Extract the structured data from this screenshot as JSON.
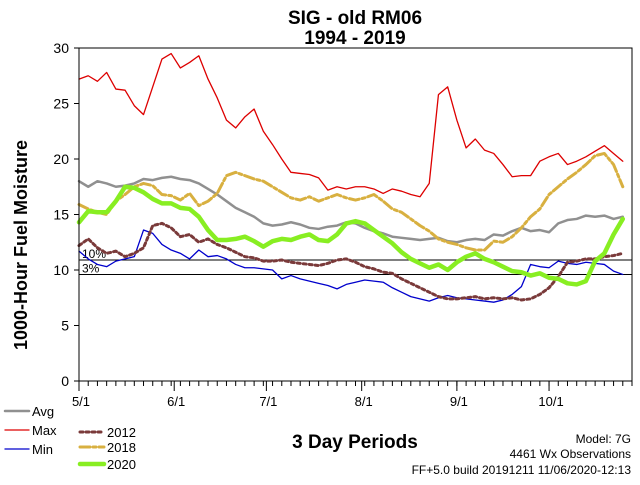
{
  "chart_data": {
    "type": "line",
    "title": "SIG - old RM06",
    "subtitle": "1994 - 2019",
    "xlabel": "3 Day Periods",
    "ylabel": "1000-Hour Fuel Moisture",
    "ylim": [
      0,
      30
    ],
    "yticks": [
      0,
      5,
      10,
      15,
      20,
      25,
      30
    ],
    "xlim": [
      0,
      60
    ],
    "xticks": [
      {
        "label": "5/1",
        "period": 0
      },
      {
        "label": "6/1",
        "period": 10.33
      },
      {
        "label": "7/1",
        "period": 20.33
      },
      {
        "label": "8/1",
        "period": 30.67
      },
      {
        "label": "9/1",
        "period": 41
      },
      {
        "label": "10/1",
        "period": 51
      }
    ],
    "grid": false,
    "reference_lines": [
      {
        "label": "10%",
        "value": 10.9
      },
      {
        "label": "3%",
        "value": 9.6
      }
    ],
    "series": [
      {
        "name": "Avg",
        "color": "#909090",
        "width": 2.5,
        "dash": "",
        "values": [
          18.0,
          17.5,
          18.0,
          17.8,
          17.5,
          17.6,
          17.8,
          18.2,
          18.1,
          18.3,
          18.4,
          18.2,
          18.1,
          17.8,
          17.3,
          16.8,
          16.2,
          15.6,
          15.2,
          14.8,
          14.2,
          14.0,
          14.1,
          14.3,
          14.1,
          13.8,
          13.7,
          13.9,
          14.0,
          14.3,
          14.2,
          13.8,
          13.5,
          13.3,
          13.0,
          12.9,
          12.8,
          12.7,
          12.8,
          12.9,
          12.6,
          12.5,
          12.7,
          12.8,
          12.7,
          13.2,
          13.1,
          13.5,
          13.8,
          13.5,
          13.6,
          13.4,
          14.2,
          14.5,
          14.6,
          14.9,
          14.8,
          14.9,
          14.6,
          14.8
        ]
      },
      {
        "name": "Max",
        "color": "#dd0000",
        "width": 1.3,
        "dash": "",
        "values": [
          27.2,
          27.5,
          27.0,
          27.8,
          26.3,
          26.2,
          24.8,
          24.0,
          26.5,
          29.0,
          29.5,
          28.2,
          28.7,
          29.3,
          27.2,
          25.5,
          23.5,
          22.8,
          23.8,
          24.5,
          22.5,
          21.3,
          20.0,
          18.8,
          18.7,
          18.6,
          18.3,
          17.2,
          17.5,
          17.3,
          17.5,
          17.5,
          17.3,
          16.9,
          17.3,
          17.1,
          16.8,
          16.6,
          17.8,
          25.8,
          26.5,
          23.5,
          21.0,
          21.8,
          20.8,
          20.5,
          19.5,
          18.4,
          18.5,
          18.5,
          19.8,
          20.2,
          20.5,
          19.5,
          19.8,
          20.2,
          20.7,
          21.2,
          20.5,
          19.8
        ]
      },
      {
        "name": "Min",
        "color": "#0000cc",
        "width": 1.3,
        "dash": "",
        "values": [
          11.7,
          11.0,
          10.5,
          10.3,
          10.8,
          11.0,
          11.2,
          13.6,
          13.3,
          12.3,
          11.8,
          11.5,
          11.0,
          11.8,
          11.2,
          11.3,
          11.0,
          10.5,
          10.2,
          10.2,
          10.1,
          10.0,
          9.2,
          9.5,
          9.2,
          9.0,
          8.8,
          8.6,
          8.3,
          8.7,
          8.9,
          9.1,
          9.0,
          8.9,
          8.4,
          8.0,
          7.6,
          7.4,
          7.2,
          7.5,
          7.7,
          7.5,
          7.4,
          7.3,
          7.2,
          7.1,
          7.3,
          7.8,
          8.5,
          10.5,
          10.3,
          10.2,
          10.8,
          10.6,
          10.5,
          10.7,
          10.6,
          10.5,
          9.9,
          9.6
        ]
      },
      {
        "name": "2012",
        "color": "#7a3a3a",
        "width": 3,
        "dash": "3 3",
        "values": [
          12.2,
          12.8,
          12.0,
          11.5,
          11.7,
          11.2,
          11.5,
          12.0,
          14.0,
          14.2,
          13.8,
          13.0,
          13.2,
          12.5,
          12.8,
          12.3,
          12.0,
          11.6,
          11.2,
          11.1,
          10.8,
          10.8,
          10.9,
          10.7,
          10.6,
          10.5,
          10.4,
          10.6,
          10.9,
          11.0,
          10.7,
          10.3,
          10.1,
          9.8,
          9.7,
          9.2,
          8.8,
          8.4,
          8.0,
          7.6,
          7.4,
          7.4,
          7.5,
          7.6,
          7.4,
          7.5,
          7.4,
          7.5,
          7.3,
          7.4,
          7.8,
          8.4,
          9.4,
          10.7,
          10.8,
          11.0,
          11.0,
          11.2,
          11.3,
          11.5
        ]
      },
      {
        "name": "2018",
        "color": "#d8b040",
        "width": 3,
        "dash": "10 3 3 3",
        "values": [
          15.9,
          15.5,
          15.2,
          15.0,
          16.2,
          16.8,
          17.5,
          17.8,
          17.6,
          16.8,
          16.7,
          16.3,
          16.9,
          15.8,
          16.2,
          16.9,
          18.5,
          18.8,
          18.5,
          18.2,
          18.0,
          17.5,
          17.0,
          16.5,
          16.3,
          16.6,
          16.2,
          16.5,
          16.8,
          16.5,
          16.3,
          16.5,
          16.8,
          16.2,
          15.5,
          15.2,
          14.6,
          14.0,
          13.5,
          12.8,
          12.5,
          12.3,
          12.0,
          11.8,
          11.8,
          12.6,
          12.5,
          13.0,
          13.8,
          14.8,
          15.5,
          16.8,
          17.5,
          18.2,
          18.8,
          19.5,
          20.3,
          20.5,
          19.5,
          17.5
        ]
      },
      {
        "name": "2020",
        "color": "#88ee22",
        "width": 4.5,
        "dash": "",
        "values": [
          14.3,
          15.3,
          15.2,
          15.2,
          16.2,
          17.5,
          17.4,
          17.0,
          16.4,
          16.0,
          16.0,
          15.6,
          15.5,
          14.8,
          13.6,
          12.7,
          12.7,
          12.8,
          13.0,
          12.6,
          12.1,
          12.6,
          12.8,
          12.7,
          13.0,
          13.2,
          12.7,
          12.6,
          13.2,
          14.2,
          14.4,
          14.2,
          13.6,
          13.0,
          12.4,
          11.6,
          11.0,
          10.6,
          10.2,
          10.5,
          10.0,
          10.7,
          11.2,
          11.5,
          11.0,
          10.7,
          10.3,
          9.9,
          9.8,
          9.5,
          9.7,
          9.3,
          9.2,
          8.8,
          8.7,
          9.0,
          10.8,
          11.5,
          13.2,
          14.6
        ]
      }
    ],
    "footer": {
      "model": "Model: 7G",
      "observations": "4461 Wx Observations",
      "build": "FF+5.0 build 20191211 11/06/2020-12:13"
    }
  }
}
